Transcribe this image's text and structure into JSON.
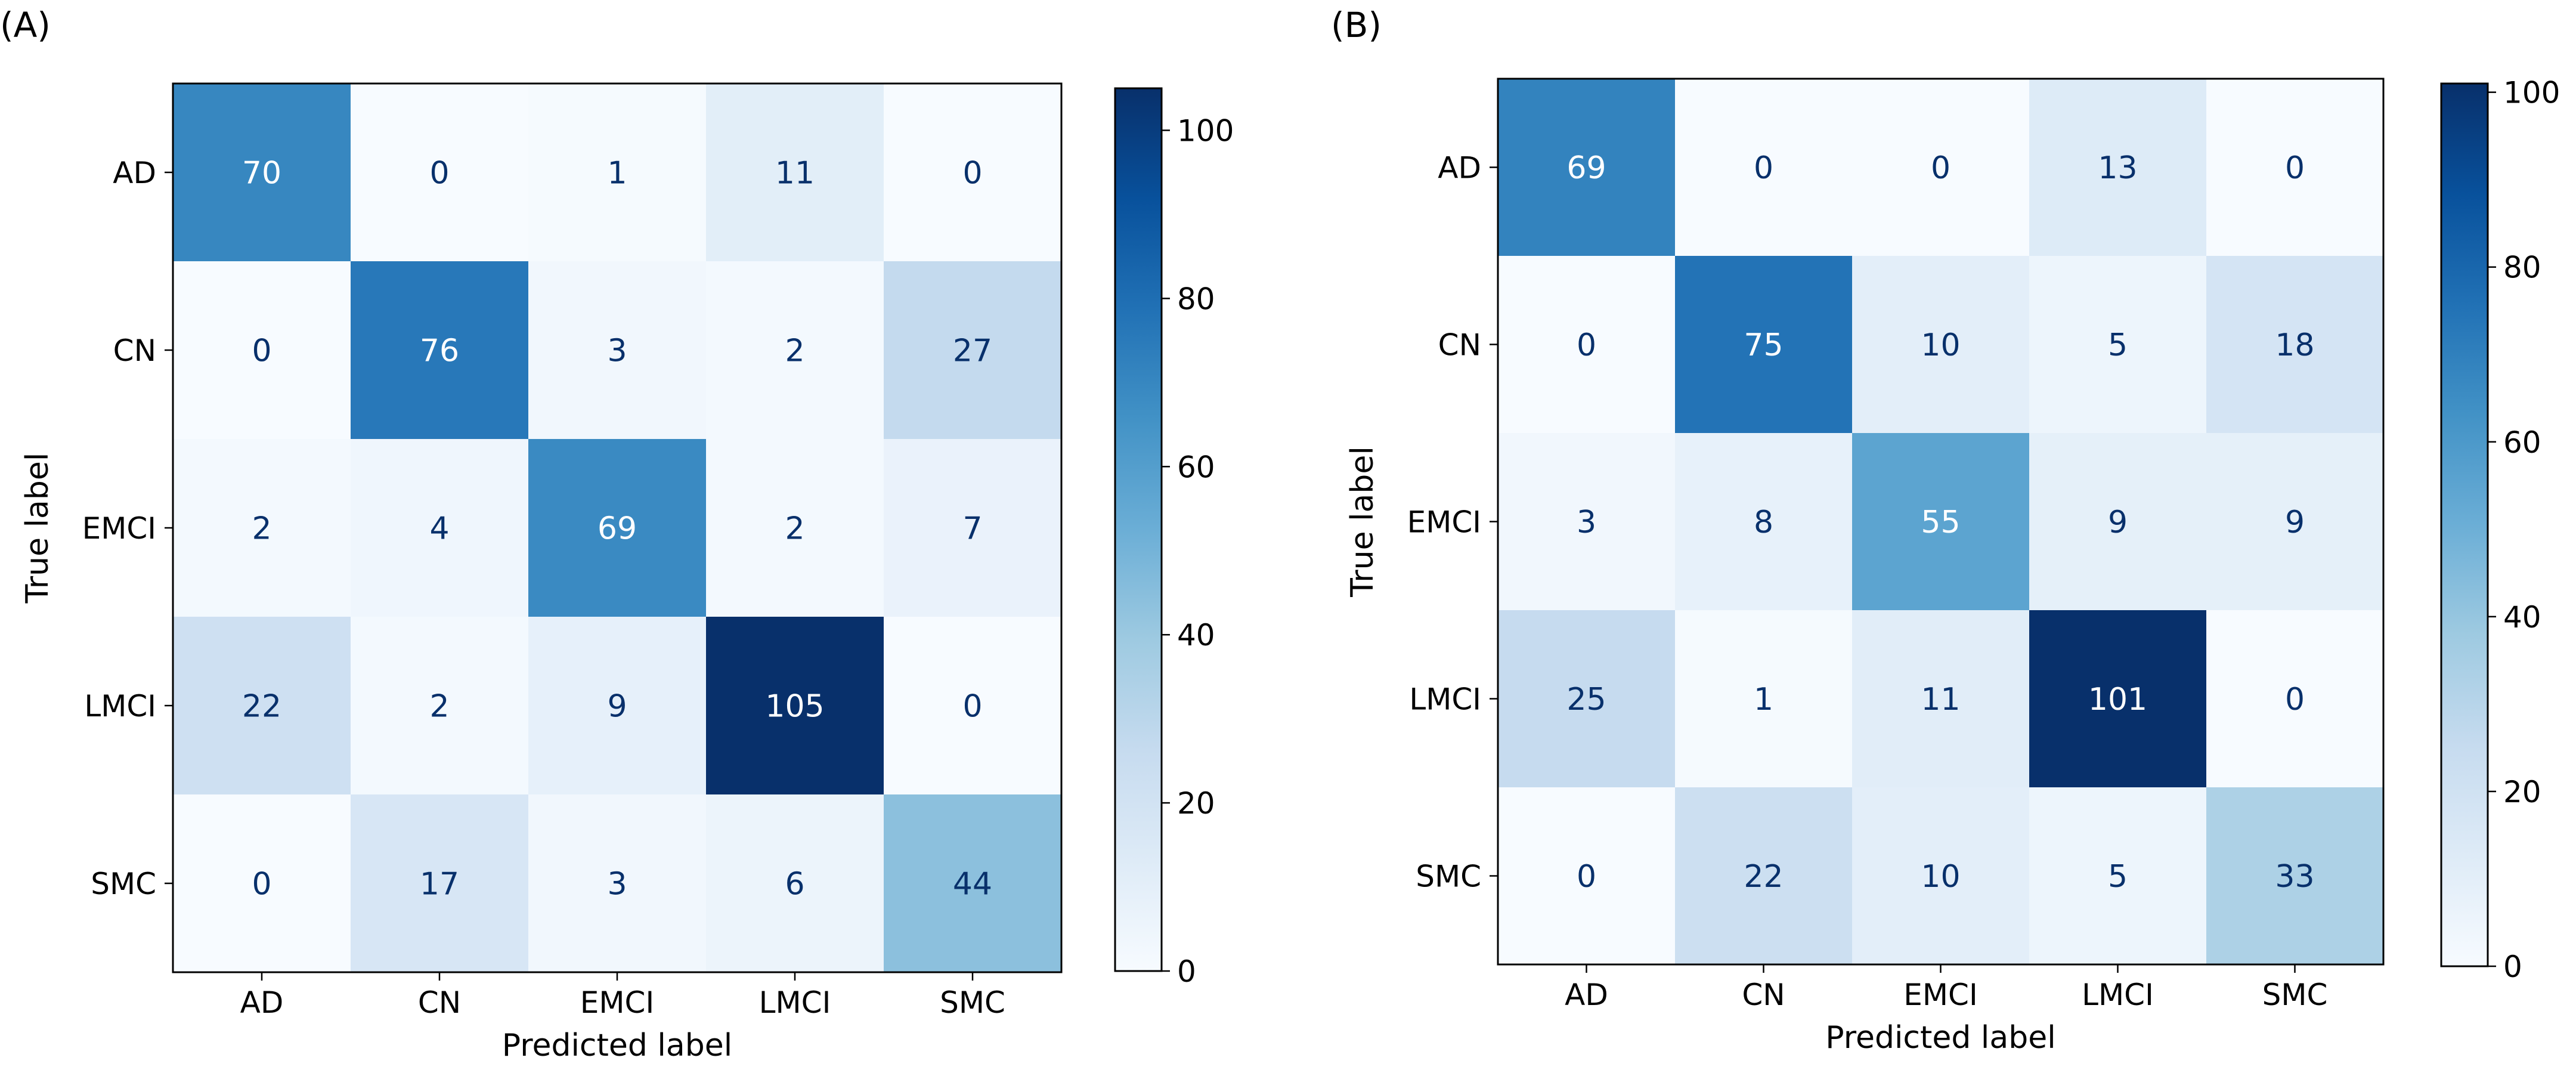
{
  "chart_data": [
    {
      "type": "heatmap",
      "panel_label": "(A)",
      "xlabel": "Predicted label",
      "ylabel": "True label",
      "x_categories": [
        "AD",
        "CN",
        "EMCI",
        "LMCI",
        "SMC"
      ],
      "y_categories": [
        "AD",
        "CN",
        "EMCI",
        "LMCI",
        "SMC"
      ],
      "values": [
        [
          70,
          0,
          1,
          11,
          0
        ],
        [
          0,
          76,
          3,
          2,
          27
        ],
        [
          2,
          4,
          69,
          2,
          7
        ],
        [
          22,
          2,
          9,
          105,
          0
        ],
        [
          0,
          17,
          3,
          6,
          44
        ]
      ],
      "colormap": "Blues",
      "colorbar": {
        "min": 0,
        "max": 105,
        "ticks": [
          0,
          20,
          40,
          60,
          80,
          100
        ]
      }
    },
    {
      "type": "heatmap",
      "panel_label": "(B)",
      "xlabel": "Predicted label",
      "ylabel": "True label",
      "x_categories": [
        "AD",
        "CN",
        "EMCI",
        "LMCI",
        "SMC"
      ],
      "y_categories": [
        "AD",
        "CN",
        "EMCI",
        "LMCI",
        "SMC"
      ],
      "values": [
        [
          69,
          0,
          0,
          13,
          0
        ],
        [
          0,
          75,
          10,
          5,
          18
        ],
        [
          3,
          8,
          55,
          9,
          9
        ],
        [
          25,
          1,
          11,
          101,
          0
        ],
        [
          0,
          22,
          10,
          5,
          33
        ]
      ],
      "colormap": "Blues",
      "colorbar": {
        "min": 0,
        "max": 101,
        "ticks": [
          0,
          20,
          40,
          60,
          80,
          100
        ]
      }
    }
  ]
}
